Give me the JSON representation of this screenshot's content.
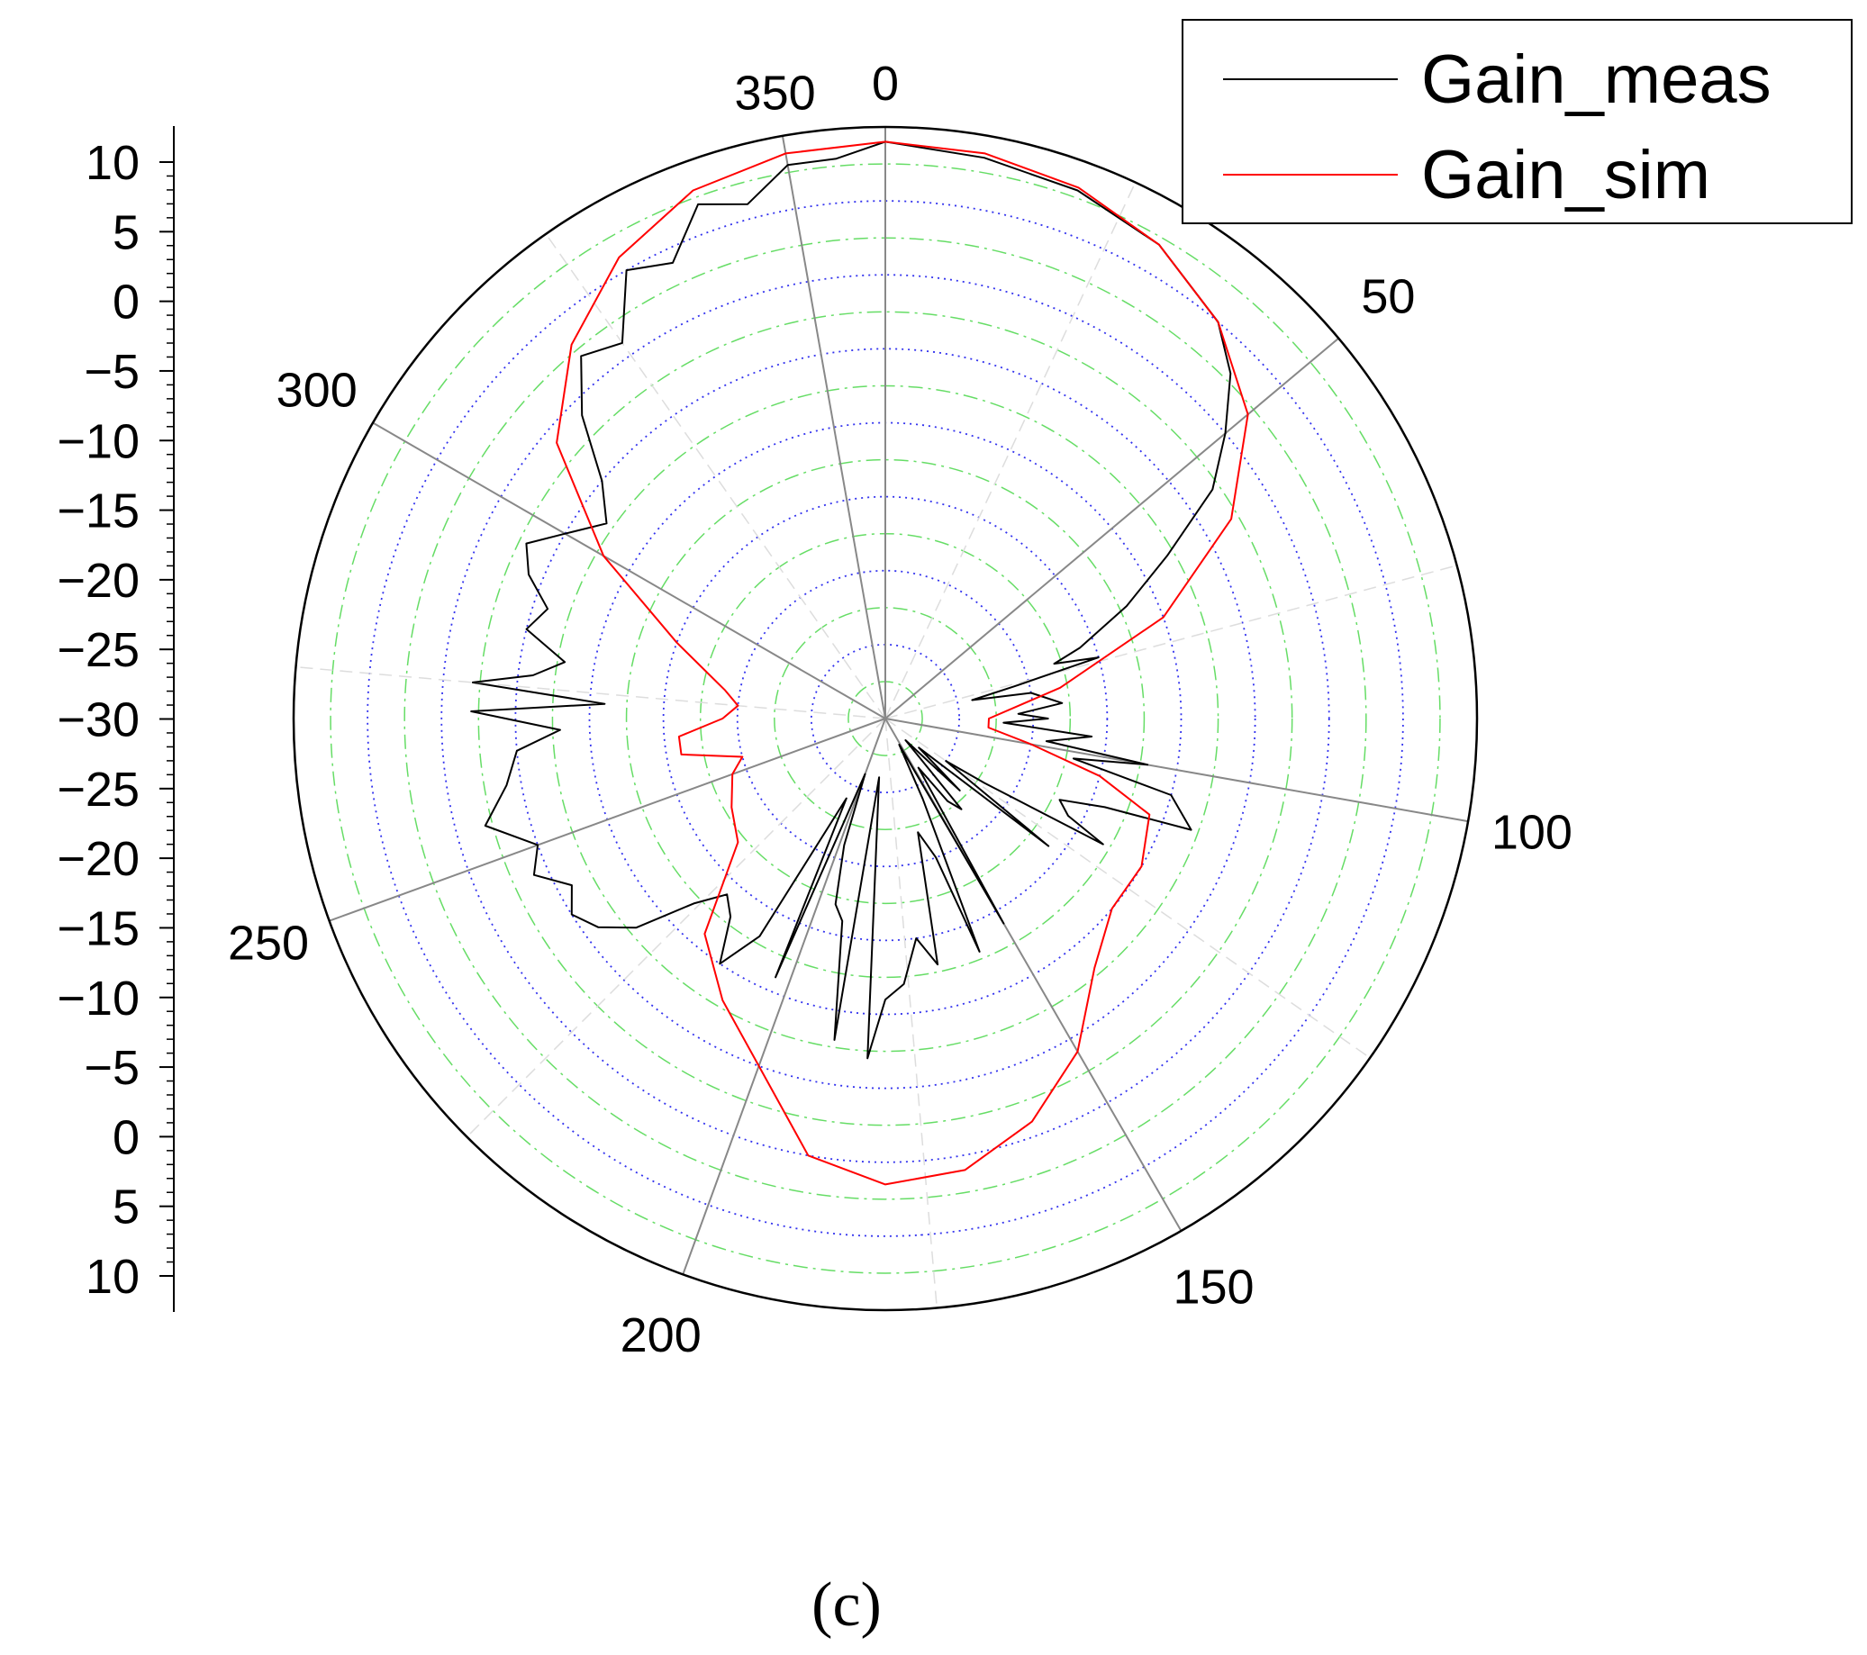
{
  "chart_data": {
    "type": "polar-line",
    "angle_ticks": [
      "0",
      "50",
      "100",
      "150",
      "200",
      "250",
      "300",
      "350"
    ],
    "angle_tick_values": [
      0,
      50,
      100,
      150,
      200,
      250,
      300,
      350
    ],
    "angle_direction": "clockwise, 0 at top",
    "radial_range": [
      -30,
      10
    ],
    "radial_unit_step": 5,
    "radial_scale_labels": [
      "10",
      "5",
      "0",
      "−5",
      "−10",
      "−15",
      "−20",
      "−25",
      "−30",
      "−25",
      "−20",
      "−15",
      "−10",
      "−5",
      "0",
      "5",
      "10"
    ],
    "grid": "dotted blue circles at 5-unit steps, dash-dot green circles between them, grey spokes every 50 degrees",
    "legend_placement": "top-right",
    "series": [
      {
        "name": "Gain_meas",
        "color": "#000000",
        "points": [
          [
            0,
            9
          ],
          [
            10,
            8.5
          ],
          [
            20,
            8
          ],
          [
            30,
            7
          ],
          [
            40,
            5
          ],
          [
            45,
            3
          ],
          [
            50,
            0
          ],
          [
            55,
            -3
          ],
          [
            60,
            -8
          ],
          [
            65,
            -12
          ],
          [
            70,
            -16
          ],
          [
            72,
            -18
          ],
          [
            74,
            -15
          ],
          [
            76,
            -21
          ],
          [
            78,
            -24
          ],
          [
            80,
            -20
          ],
          [
            85,
            -18
          ],
          [
            88,
            -21
          ],
          [
            90,
            -19
          ],
          [
            92,
            -22
          ],
          [
            95,
            -16
          ],
          [
            98,
            -19
          ],
          [
            100,
            -12
          ],
          [
            102,
            -17
          ],
          [
            105,
            -10
          ],
          [
            110,
            -8
          ],
          [
            112,
            -14
          ],
          [
            115,
            -17
          ],
          [
            118,
            -16
          ],
          [
            120,
            -13
          ],
          [
            123,
            -22
          ],
          [
            125,
            -25
          ],
          [
            128,
            -16
          ],
          [
            131,
            -27
          ],
          [
            134,
            -23
          ],
          [
            137,
            -28
          ],
          [
            140,
            -22
          ],
          [
            143,
            -23
          ],
          [
            146,
            -26
          ],
          [
            150,
            -14
          ],
          [
            152,
            -28
          ],
          [
            155,
            -24
          ],
          [
            158,
            -13
          ],
          [
            160,
            -20
          ],
          [
            164,
            -22
          ],
          [
            168,
            -13
          ],
          [
            172,
            -15
          ],
          [
            176,
            -12
          ],
          [
            180,
            -11
          ],
          [
            183,
            -7
          ],
          [
            186,
            -26
          ],
          [
            189,
            -8
          ],
          [
            192,
            -16
          ],
          [
            195,
            -17
          ],
          [
            198,
            -21
          ],
          [
            200,
            -26
          ],
          [
            203,
            -11
          ],
          [
            206,
            -24
          ],
          [
            210,
            -13
          ],
          [
            214,
            -10
          ],
          [
            218,
            -13
          ],
          [
            222,
            -14
          ],
          [
            226,
            -12
          ],
          [
            230,
            -8
          ],
          [
            234,
            -6
          ],
          [
            238,
            -5
          ],
          [
            242,
            -6
          ],
          [
            246,
            -4
          ],
          [
            250,
            -5
          ],
          [
            255,
            -2
          ],
          [
            260,
            -4
          ],
          [
            265,
            -5
          ],
          [
            268,
            -8
          ],
          [
            271,
            -2
          ],
          [
            273,
            -11
          ],
          [
            275,
            -2
          ],
          [
            277,
            -6
          ],
          [
            280,
            -8
          ],
          [
            284,
            -5
          ],
          [
            288,
            -6
          ],
          [
            292,
            -4
          ],
          [
            296,
            -3
          ],
          [
            300,
            -5
          ],
          [
            305,
            -7
          ],
          [
            310,
            -5
          ],
          [
            315,
            -1
          ],
          [
            320,
            2
          ],
          [
            325,
            1
          ],
          [
            330,
            5
          ],
          [
            335,
            4
          ],
          [
            340,
            7
          ],
          [
            345,
            6
          ],
          [
            350,
            8
          ],
          [
            355,
            8
          ],
          [
            360,
            9
          ]
        ]
      },
      {
        "name": "Gain_sim",
        "color": "#ff0000",
        "points": [
          [
            0,
            9
          ],
          [
            10,
            8.8
          ],
          [
            20,
            8.2
          ],
          [
            30,
            7
          ],
          [
            40,
            5
          ],
          [
            50,
            2
          ],
          [
            60,
            -3
          ],
          [
            70,
            -10
          ],
          [
            80,
            -18
          ],
          [
            90,
            -23
          ],
          [
            95,
            -23
          ],
          [
            100,
            -20
          ],
          [
            105,
            -15
          ],
          [
            110,
            -11
          ],
          [
            120,
            -10
          ],
          [
            130,
            -10
          ],
          [
            140,
            -8
          ],
          [
            150,
            -4
          ],
          [
            160,
            -1
          ],
          [
            170,
            1
          ],
          [
            180,
            1.5
          ],
          [
            190,
            0
          ],
          [
            200,
            -5
          ],
          [
            210,
            -8
          ],
          [
            220,
            -11
          ],
          [
            230,
            -17
          ],
          [
            240,
            -18
          ],
          [
            250,
            -19
          ],
          [
            255,
            -20
          ],
          [
            260,
            -16
          ],
          [
            265,
            -16
          ],
          [
            270,
            -19
          ],
          [
            275,
            -20
          ],
          [
            280,
            -19
          ],
          [
            290,
            -15
          ],
          [
            300,
            -8
          ],
          [
            310,
            -1
          ],
          [
            320,
            3
          ],
          [
            330,
            6
          ],
          [
            340,
            8
          ],
          [
            350,
            8.8
          ],
          [
            360,
            9
          ]
        ]
      }
    ]
  },
  "legend": {
    "items": [
      {
        "label": "Gain_meas",
        "color": "#000000"
      },
      {
        "label": "Gain_sim",
        "color": "#ff0000"
      }
    ]
  },
  "caption": "(c)"
}
